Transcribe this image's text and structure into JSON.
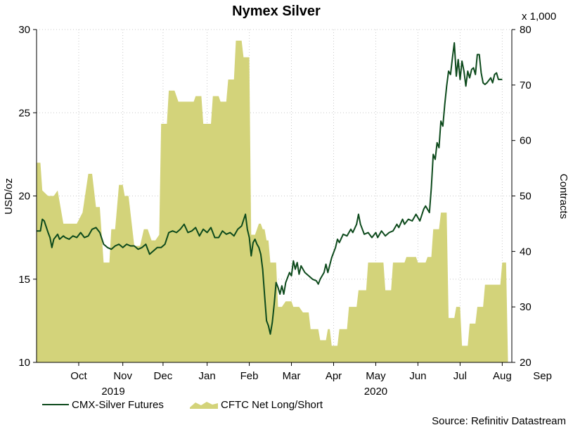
{
  "chart_data": {
    "type": "line",
    "title": "Nymex Silver",
    "ylabel_left": "USD/oz",
    "ylabel_right": "Contracts",
    "right_multiplier": "x 1,000",
    "ylim_left": [
      10,
      30
    ],
    "ylim_right": [
      20,
      80
    ],
    "yticks_left": [
      10,
      15,
      20,
      25,
      30
    ],
    "yticks_right": [
      20,
      30,
      40,
      50,
      60,
      70,
      80
    ],
    "xlim": [
      0,
      248
    ],
    "month_ticks": [
      {
        "label": "Oct",
        "x": 22
      },
      {
        "label": "Nov",
        "x": 45
      },
      {
        "label": "Dec",
        "x": 66
      },
      {
        "label": "Jan",
        "x": 89
      },
      {
        "label": "Feb",
        "x": 111
      },
      {
        "label": "Mar",
        "x": 133
      },
      {
        "label": "Apr",
        "x": 155
      },
      {
        "label": "May",
        "x": 177
      },
      {
        "label": "Jun",
        "x": 199
      },
      {
        "label": "Jul",
        "x": 221
      },
      {
        "label": "Aug",
        "x": 243
      },
      {
        "label": "Sep",
        "x": 264
      }
    ],
    "year_labels": [
      {
        "label": "2019",
        "x": 40
      },
      {
        "label": "2020",
        "x": 177
      }
    ],
    "grid": true,
    "legend_position": "bottom-left",
    "series": [
      {
        "name": "CMX-Silver Futures",
        "axis": "left",
        "type": "line",
        "color": "#0d4a1c",
        "points": [
          [
            0,
            17.9
          ],
          [
            2,
            17.9
          ],
          [
            3,
            18.6
          ],
          [
            4,
            18.5
          ],
          [
            6,
            17.8
          ],
          [
            7,
            17.5
          ],
          [
            8,
            16.9
          ],
          [
            9,
            17.4
          ],
          [
            11,
            17.7
          ],
          [
            12,
            17.4
          ],
          [
            14,
            17.6
          ],
          [
            15,
            17.5
          ],
          [
            17,
            17.4
          ],
          [
            19,
            17.6
          ],
          [
            21,
            17.5
          ],
          [
            23,
            17.8
          ],
          [
            25,
            17.5
          ],
          [
            27,
            17.6
          ],
          [
            29,
            18.0
          ],
          [
            31,
            18.1
          ],
          [
            33,
            17.8
          ],
          [
            35,
            17.1
          ],
          [
            37,
            16.9
          ],
          [
            39,
            16.8
          ],
          [
            41,
            17.0
          ],
          [
            43,
            17.1
          ],
          [
            45,
            16.9
          ],
          [
            47,
            17.1
          ],
          [
            49,
            17.0
          ],
          [
            51,
            17.0
          ],
          [
            53,
            16.8
          ],
          [
            55,
            16.9
          ],
          [
            57,
            17.1
          ],
          [
            59,
            16.5
          ],
          [
            61,
            16.7
          ],
          [
            63,
            16.9
          ],
          [
            65,
            16.9
          ],
          [
            67,
            17.1
          ],
          [
            69,
            17.8
          ],
          [
            71,
            17.9
          ],
          [
            73,
            17.8
          ],
          [
            75,
            18.0
          ],
          [
            77,
            18.3
          ],
          [
            79,
            17.8
          ],
          [
            81,
            17.9
          ],
          [
            83,
            18.1
          ],
          [
            85,
            17.6
          ],
          [
            87,
            18.0
          ],
          [
            89,
            17.8
          ],
          [
            91,
            18.1
          ],
          [
            93,
            17.5
          ],
          [
            95,
            17.5
          ],
          [
            97,
            17.9
          ],
          [
            99,
            17.7
          ],
          [
            101,
            17.8
          ],
          [
            103,
            17.6
          ],
          [
            105,
            18.0
          ],
          [
            107,
            18.2
          ],
          [
            109,
            18.9
          ],
          [
            110,
            18.0
          ],
          [
            111,
            17.5
          ],
          [
            112,
            16.4
          ],
          [
            113,
            17.2
          ],
          [
            114,
            17.4
          ],
          [
            115,
            17.1
          ],
          [
            116,
            16.9
          ],
          [
            117,
            16.5
          ],
          [
            118,
            15.6
          ],
          [
            119,
            14.0
          ],
          [
            120,
            12.5
          ],
          [
            121,
            12.2
          ],
          [
            122,
            11.7
          ],
          [
            123,
            12.4
          ],
          [
            124,
            13.5
          ],
          [
            125,
            14.8
          ],
          [
            126,
            14.5
          ],
          [
            127,
            14.1
          ],
          [
            128,
            14.6
          ],
          [
            129,
            14.1
          ],
          [
            130,
            14.8
          ],
          [
            131,
            15.1
          ],
          [
            132,
            15.4
          ],
          [
            133,
            15.2
          ],
          [
            134,
            16.1
          ],
          [
            135,
            15.6
          ],
          [
            136,
            16.0
          ],
          [
            137,
            15.3
          ],
          [
            138,
            15.8
          ],
          [
            140,
            15.4
          ],
          [
            142,
            15.2
          ],
          [
            144,
            15.0
          ],
          [
            146,
            14.9
          ],
          [
            147,
            14.7
          ],
          [
            148,
            15.0
          ],
          [
            150,
            15.4
          ],
          [
            151,
            15.9
          ],
          [
            152,
            15.4
          ],
          [
            154,
            16.3
          ],
          [
            156,
            16.9
          ],
          [
            157,
            17.4
          ],
          [
            158,
            17.2
          ],
          [
            160,
            17.7
          ],
          [
            162,
            17.6
          ],
          [
            164,
            18.0
          ],
          [
            165,
            17.8
          ],
          [
            167,
            18.3
          ],
          [
            168,
            18.9
          ],
          [
            169,
            18.3
          ],
          [
            171,
            17.7
          ],
          [
            173,
            17.8
          ],
          [
            175,
            17.5
          ],
          [
            177,
            17.8
          ],
          [
            178,
            17.5
          ],
          [
            180,
            17.9
          ],
          [
            182,
            17.6
          ],
          [
            184,
            17.8
          ],
          [
            186,
            17.9
          ],
          [
            188,
            18.3
          ],
          [
            189,
            18.1
          ],
          [
            191,
            18.6
          ],
          [
            192,
            18.3
          ],
          [
            194,
            18.6
          ],
          [
            196,
            18.5
          ],
          [
            198,
            18.9
          ],
          [
            200,
            18.5
          ],
          [
            202,
            19.2
          ],
          [
            203,
            19.4
          ],
          [
            205,
            19.0
          ],
          [
            206,
            20.5
          ],
          [
            207,
            22.5
          ],
          [
            208,
            22.2
          ],
          [
            209,
            23.2
          ],
          [
            210,
            22.9
          ],
          [
            211,
            24.5
          ],
          [
            212,
            24.2
          ],
          [
            213,
            25.5
          ],
          [
            214,
            26.6
          ],
          [
            215,
            27.5
          ],
          [
            216,
            27.3
          ],
          [
            217,
            28.3
          ],
          [
            218,
            29.2
          ],
          [
            219,
            27.2
          ],
          [
            220,
            28.2
          ],
          [
            221,
            27.0
          ],
          [
            222,
            28.1
          ],
          [
            223,
            27.5
          ],
          [
            224,
            26.6
          ],
          [
            225,
            27.5
          ],
          [
            226,
            27.1
          ],
          [
            227,
            27.6
          ],
          [
            228,
            27.7
          ],
          [
            229,
            27.3
          ],
          [
            230,
            28.5
          ],
          [
            231,
            28.5
          ],
          [
            232,
            27.4
          ],
          [
            233,
            26.8
          ],
          [
            234,
            26.7
          ],
          [
            235,
            26.8
          ],
          [
            237,
            27.1
          ],
          [
            238,
            26.8
          ],
          [
            239,
            27.3
          ],
          [
            240,
            27.4
          ],
          [
            241,
            27.0
          ],
          [
            243,
            27.0
          ]
        ]
      },
      {
        "name": "CFTC Net Long/Short",
        "axis": "right",
        "type": "area",
        "color": "#d3d37a",
        "points": [
          [
            0,
            56
          ],
          [
            2,
            56
          ],
          [
            3,
            51
          ],
          [
            6,
            50
          ],
          [
            9,
            50
          ],
          [
            11,
            51
          ],
          [
            14,
            45
          ],
          [
            16,
            45
          ],
          [
            19,
            45
          ],
          [
            21,
            45
          ],
          [
            24,
            47
          ],
          [
            27,
            54
          ],
          [
            29,
            54
          ],
          [
            31,
            48
          ],
          [
            33,
            48
          ],
          [
            35,
            38
          ],
          [
            38,
            38
          ],
          [
            39,
            44
          ],
          [
            41,
            44
          ],
          [
            43,
            52
          ],
          [
            45,
            52
          ],
          [
            46,
            50
          ],
          [
            48,
            50
          ],
          [
            51,
            41
          ],
          [
            54,
            41
          ],
          [
            56,
            44
          ],
          [
            58,
            44
          ],
          [
            60,
            42
          ],
          [
            62,
            42
          ],
          [
            64,
            43
          ],
          [
            65,
            63
          ],
          [
            68,
            63
          ],
          [
            69,
            69
          ],
          [
            72,
            69
          ],
          [
            74,
            67
          ],
          [
            82,
            67
          ],
          [
            83,
            68
          ],
          [
            86,
            68
          ],
          [
            87,
            63
          ],
          [
            91,
            63
          ],
          [
            92,
            68
          ],
          [
            95,
            68
          ],
          [
            96,
            67
          ],
          [
            99,
            67
          ],
          [
            100,
            71
          ],
          [
            103,
            71
          ],
          [
            104,
            78
          ],
          [
            107,
            78
          ],
          [
            108,
            75
          ],
          [
            111,
            75
          ],
          [
            112,
            43
          ],
          [
            114,
            43
          ],
          [
            116,
            45
          ],
          [
            117,
            45
          ],
          [
            118,
            44
          ],
          [
            119,
            44
          ],
          [
            120,
            42
          ],
          [
            121,
            42
          ],
          [
            122,
            38
          ],
          [
            125,
            38
          ],
          [
            126,
            30
          ],
          [
            128,
            30
          ],
          [
            130,
            31
          ],
          [
            133,
            31
          ],
          [
            134,
            30
          ],
          [
            137,
            30
          ],
          [
            139,
            29
          ],
          [
            142,
            29
          ],
          [
            143,
            26
          ],
          [
            147,
            26
          ],
          [
            148,
            24
          ],
          [
            151,
            24
          ],
          [
            152,
            26
          ],
          [
            153,
            26
          ],
          [
            154,
            23
          ],
          [
            157,
            23
          ],
          [
            158,
            26
          ],
          [
            162,
            26
          ],
          [
            163,
            30
          ],
          [
            167,
            30
          ],
          [
            168,
            33
          ],
          [
            172,
            33
          ],
          [
            173,
            38
          ],
          [
            181,
            38
          ],
          [
            182,
            33
          ],
          [
            185,
            33
          ],
          [
            186,
            38
          ],
          [
            192,
            38
          ],
          [
            193,
            39
          ],
          [
            198,
            39
          ],
          [
            199,
            38
          ],
          [
            203,
            38
          ],
          [
            204,
            39
          ],
          [
            206,
            39
          ],
          [
            207,
            44
          ],
          [
            210,
            44
          ],
          [
            211,
            47
          ],
          [
            214,
            47
          ],
          [
            215,
            28
          ],
          [
            218,
            28
          ],
          [
            219,
            30
          ],
          [
            221,
            30
          ],
          [
            222,
            23
          ],
          [
            225,
            23
          ],
          [
            226,
            27
          ],
          [
            229,
            27
          ],
          [
            230,
            30
          ],
          [
            233,
            30
          ],
          [
            234,
            34
          ],
          [
            238,
            34
          ],
          [
            239,
            34
          ],
          [
            242,
            34
          ],
          [
            243,
            38
          ],
          [
            245,
            38
          ],
          [
            246,
            20
          ]
        ]
      }
    ],
    "source": "Source: Refinitiv Datastream"
  }
}
